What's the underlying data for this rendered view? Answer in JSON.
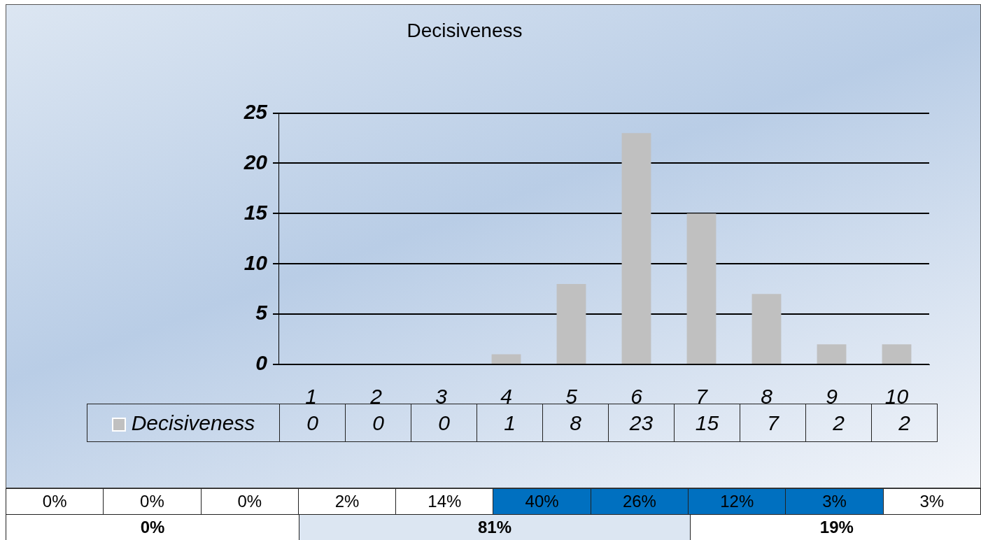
{
  "chart_data": {
    "type": "bar",
    "title": "Decisiveness",
    "categories": [
      "1",
      "2",
      "3",
      "4",
      "5",
      "6",
      "7",
      "8",
      "9",
      "10"
    ],
    "series": [
      {
        "name": "Decisiveness",
        "color": "#c0c0c0",
        "values": [
          0,
          0,
          0,
          1,
          8,
          23,
          15,
          7,
          2,
          2
        ]
      }
    ],
    "ylim": [
      0,
      25
    ],
    "yticks": [
      0,
      5,
      10,
      15,
      20,
      25
    ],
    "grid": "y",
    "legend": "bottom left",
    "data_labels": true,
    "annotations": [
      "0%",
      "0%",
      "0%",
      "2%",
      "14%",
      "40%",
      "26%",
      "12%",
      "3%",
      "3%",
      "0%",
      "81%",
      "19%"
    ]
  }
}
